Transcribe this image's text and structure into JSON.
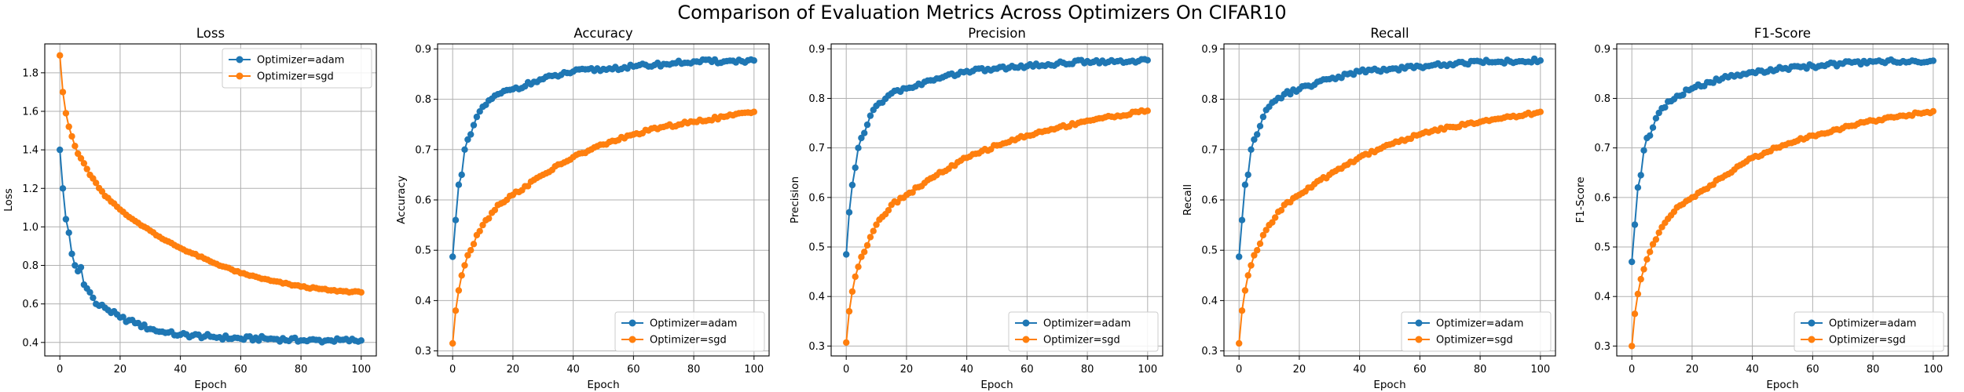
{
  "figure": {
    "suptitle": "Comparison of Evaluation Metrics Across Optimizers On CIFAR10"
  },
  "colors": {
    "adam": "#1f77b4",
    "sgd": "#ff7f0e",
    "grid": "#b0b0b0"
  },
  "chart_data": [
    {
      "type": "line",
      "title": "Loss",
      "xlabel": "Epoch",
      "ylabel": "Loss",
      "xlim": [
        -5,
        105
      ],
      "ylim": [
        0.33,
        1.95
      ],
      "xticks": [
        0,
        20,
        40,
        60,
        80,
        100
      ],
      "yticks": [
        0.4,
        0.6,
        0.8,
        1.0,
        1.2,
        1.4,
        1.6,
        1.8
      ],
      "ytick_labels": [
        "0.4",
        "0.6",
        "0.8",
        "1.0",
        "1.2",
        "1.4",
        "1.6",
        "1.8"
      ],
      "grid": true,
      "legend": "upper right",
      "series": [
        {
          "name": "Optimizer=adam",
          "key": "adam",
          "anchors": [
            [
              0,
              1.4
            ],
            [
              1,
              1.2
            ],
            [
              2,
              1.04
            ],
            [
              3,
              0.97
            ],
            [
              4,
              0.86
            ],
            [
              5,
              0.8
            ],
            [
              6,
              0.77
            ],
            [
              7,
              0.79
            ],
            [
              8,
              0.7
            ],
            [
              10,
              0.66
            ],
            [
              12,
              0.6
            ],
            [
              15,
              0.58
            ],
            [
              20,
              0.53
            ],
            [
              25,
              0.5
            ],
            [
              30,
              0.47
            ],
            [
              35,
              0.45
            ],
            [
              40,
              0.44
            ],
            [
              50,
              0.43
            ],
            [
              60,
              0.42
            ],
            [
              70,
              0.42
            ],
            [
              80,
              0.41
            ],
            [
              90,
              0.41
            ],
            [
              100,
              0.41
            ]
          ],
          "noise": 0.012
        },
        {
          "name": "Optimizer=sgd",
          "key": "sgd",
          "anchors": [
            [
              0,
              1.89
            ],
            [
              1,
              1.7
            ],
            [
              2,
              1.59
            ],
            [
              3,
              1.52
            ],
            [
              4,
              1.47
            ],
            [
              5,
              1.42
            ],
            [
              6,
              1.38
            ],
            [
              8,
              1.33
            ],
            [
              10,
              1.27
            ],
            [
              15,
              1.16
            ],
            [
              20,
              1.09
            ],
            [
              25,
              1.03
            ],
            [
              30,
              0.98
            ],
            [
              35,
              0.93
            ],
            [
              40,
              0.89
            ],
            [
              50,
              0.82
            ],
            [
              60,
              0.76
            ],
            [
              70,
              0.72
            ],
            [
              80,
              0.69
            ],
            [
              90,
              0.67
            ],
            [
              100,
              0.66
            ]
          ],
          "noise": 0.004
        }
      ]
    },
    {
      "type": "line",
      "title": "Accuracy",
      "xlabel": "Epoch",
      "ylabel": "Accuracy",
      "xlim": [
        -5,
        105
      ],
      "ylim": [
        0.29,
        0.91
      ],
      "xticks": [
        0,
        20,
        40,
        60,
        80,
        100
      ],
      "yticks": [
        0.3,
        0.4,
        0.5,
        0.6,
        0.7,
        0.8,
        0.9
      ],
      "ytick_labels": [
        "0.3",
        "0.4",
        "0.5",
        "0.6",
        "0.7",
        "0.8",
        "0.9"
      ],
      "grid": true,
      "legend": "lower right",
      "series": [
        {
          "name": "Optimizer=adam",
          "key": "adam",
          "anchors": [
            [
              0,
              0.487
            ],
            [
              1,
              0.56
            ],
            [
              2,
              0.63
            ],
            [
              3,
              0.65
            ],
            [
              4,
              0.7
            ],
            [
              5,
              0.72
            ],
            [
              6,
              0.73
            ],
            [
              8,
              0.765
            ],
            [
              10,
              0.785
            ],
            [
              15,
              0.81
            ],
            [
              20,
              0.82
            ],
            [
              30,
              0.84
            ],
            [
              40,
              0.855
            ],
            [
              50,
              0.86
            ],
            [
              60,
              0.865
            ],
            [
              70,
              0.87
            ],
            [
              80,
              0.875
            ],
            [
              90,
              0.875
            ],
            [
              100,
              0.877
            ]
          ],
          "noise": 0.004
        },
        {
          "name": "Optimizer=sgd",
          "key": "sgd",
          "anchors": [
            [
              0,
              0.315
            ],
            [
              1,
              0.38
            ],
            [
              2,
              0.42
            ],
            [
              3,
              0.45
            ],
            [
              4,
              0.47
            ],
            [
              5,
              0.49
            ],
            [
              6,
              0.5
            ],
            [
              8,
              0.53
            ],
            [
              10,
              0.55
            ],
            [
              15,
              0.59
            ],
            [
              20,
              0.61
            ],
            [
              30,
              0.65
            ],
            [
              40,
              0.685
            ],
            [
              50,
              0.71
            ],
            [
              60,
              0.73
            ],
            [
              70,
              0.745
            ],
            [
              80,
              0.755
            ],
            [
              90,
              0.765
            ],
            [
              100,
              0.775
            ]
          ],
          "noise": 0.003
        }
      ]
    },
    {
      "type": "line",
      "title": "Precision",
      "xlabel": "Epoch",
      "ylabel": "Precision",
      "xlim": [
        -5,
        105
      ],
      "ylim": [
        0.28,
        0.91
      ],
      "xticks": [
        0,
        20,
        40,
        60,
        80,
        100
      ],
      "yticks": [
        0.3,
        0.4,
        0.5,
        0.6,
        0.7,
        0.8,
        0.9
      ],
      "ytick_labels": [
        "0.3",
        "0.4",
        "0.5",
        "0.6",
        "0.7",
        "0.8",
        "0.9"
      ],
      "grid": true,
      "legend": "lower right",
      "series": [
        {
          "name": "Optimizer=adam",
          "key": "adam",
          "anchors": [
            [
              0,
              0.485
            ],
            [
              1,
              0.57
            ],
            [
              2,
              0.625
            ],
            [
              3,
              0.66
            ],
            [
              4,
              0.7
            ],
            [
              5,
              0.72
            ],
            [
              6,
              0.73
            ],
            [
              8,
              0.765
            ],
            [
              10,
              0.785
            ],
            [
              15,
              0.81
            ],
            [
              20,
              0.82
            ],
            [
              30,
              0.84
            ],
            [
              40,
              0.855
            ],
            [
              50,
              0.86
            ],
            [
              60,
              0.865
            ],
            [
              70,
              0.87
            ],
            [
              80,
              0.875
            ],
            [
              90,
              0.875
            ],
            [
              100,
              0.877
            ]
          ],
          "noise": 0.004
        },
        {
          "name": "Optimizer=sgd",
          "key": "sgd",
          "anchors": [
            [
              0,
              0.307
            ],
            [
              1,
              0.37
            ],
            [
              2,
              0.41
            ],
            [
              3,
              0.44
            ],
            [
              4,
              0.46
            ],
            [
              5,
              0.48
            ],
            [
              6,
              0.49
            ],
            [
              8,
              0.52
            ],
            [
              10,
              0.545
            ],
            [
              15,
              0.585
            ],
            [
              20,
              0.605
            ],
            [
              30,
              0.645
            ],
            [
              40,
              0.68
            ],
            [
              50,
              0.705
            ],
            [
              60,
              0.725
            ],
            [
              70,
              0.74
            ],
            [
              80,
              0.755
            ],
            [
              90,
              0.765
            ],
            [
              100,
              0.775
            ]
          ],
          "noise": 0.003
        }
      ]
    },
    {
      "type": "line",
      "title": "Recall",
      "xlabel": "Epoch",
      "ylabel": "Recall",
      "xlim": [
        -5,
        105
      ],
      "ylim": [
        0.29,
        0.91
      ],
      "xticks": [
        0,
        20,
        40,
        60,
        80,
        100
      ],
      "yticks": [
        0.3,
        0.4,
        0.5,
        0.6,
        0.7,
        0.8,
        0.9
      ],
      "ytick_labels": [
        "0.3",
        "0.4",
        "0.5",
        "0.6",
        "0.7",
        "0.8",
        "0.9"
      ],
      "grid": true,
      "legend": "lower right",
      "series": [
        {
          "name": "Optimizer=adam",
          "key": "adam",
          "anchors": [
            [
              0,
              0.487
            ],
            [
              1,
              0.56
            ],
            [
              2,
              0.63
            ],
            [
              3,
              0.65
            ],
            [
              4,
              0.7
            ],
            [
              5,
              0.72
            ],
            [
              6,
              0.73
            ],
            [
              8,
              0.765
            ],
            [
              10,
              0.785
            ],
            [
              15,
              0.81
            ],
            [
              20,
              0.82
            ],
            [
              30,
              0.84
            ],
            [
              40,
              0.855
            ],
            [
              50,
              0.86
            ],
            [
              60,
              0.865
            ],
            [
              70,
              0.87
            ],
            [
              80,
              0.875
            ],
            [
              90,
              0.875
            ],
            [
              100,
              0.877
            ]
          ],
          "noise": 0.004
        },
        {
          "name": "Optimizer=sgd",
          "key": "sgd",
          "anchors": [
            [
              0,
              0.315
            ],
            [
              1,
              0.38
            ],
            [
              2,
              0.42
            ],
            [
              3,
              0.45
            ],
            [
              4,
              0.47
            ],
            [
              5,
              0.49
            ],
            [
              6,
              0.5
            ],
            [
              8,
              0.53
            ],
            [
              10,
              0.55
            ],
            [
              15,
              0.59
            ],
            [
              20,
              0.61
            ],
            [
              30,
              0.65
            ],
            [
              40,
              0.685
            ],
            [
              50,
              0.71
            ],
            [
              60,
              0.73
            ],
            [
              70,
              0.745
            ],
            [
              80,
              0.755
            ],
            [
              90,
              0.765
            ],
            [
              100,
              0.775
            ]
          ],
          "noise": 0.003
        }
      ]
    },
    {
      "type": "line",
      "title": "F1-Score",
      "xlabel": "Epoch",
      "ylabel": "F1-Score",
      "xlim": [
        -5,
        105
      ],
      "ylim": [
        0.28,
        0.91
      ],
      "xticks": [
        0,
        20,
        40,
        60,
        80,
        100
      ],
      "yticks": [
        0.3,
        0.4,
        0.5,
        0.6,
        0.7,
        0.8,
        0.9
      ],
      "ytick_labels": [
        "0.3",
        "0.4",
        "0.5",
        "0.6",
        "0.7",
        "0.8",
        "0.9"
      ],
      "grid": true,
      "legend": "lower right",
      "series": [
        {
          "name": "Optimizer=adam",
          "key": "adam",
          "anchors": [
            [
              0,
              0.47
            ],
            [
              1,
              0.545
            ],
            [
              2,
              0.62
            ],
            [
              3,
              0.645
            ],
            [
              4,
              0.695
            ],
            [
              5,
              0.72
            ],
            [
              6,
              0.725
            ],
            [
              8,
              0.76
            ],
            [
              10,
              0.78
            ],
            [
              15,
              0.805
            ],
            [
              20,
              0.82
            ],
            [
              30,
              0.84
            ],
            [
              40,
              0.853
            ],
            [
              50,
              0.86
            ],
            [
              60,
              0.865
            ],
            [
              70,
              0.87
            ],
            [
              80,
              0.874
            ],
            [
              90,
              0.875
            ],
            [
              100,
              0.876
            ]
          ],
          "noise": 0.004
        },
        {
          "name": "Optimizer=sgd",
          "key": "sgd",
          "anchors": [
            [
              0,
              0.3
            ],
            [
              1,
              0.365
            ],
            [
              2,
              0.405
            ],
            [
              3,
              0.435
            ],
            [
              4,
              0.455
            ],
            [
              5,
              0.475
            ],
            [
              6,
              0.49
            ],
            [
              8,
              0.515
            ],
            [
              10,
              0.54
            ],
            [
              15,
              0.58
            ],
            [
              20,
              0.6
            ],
            [
              30,
              0.64
            ],
            [
              40,
              0.68
            ],
            [
              50,
              0.705
            ],
            [
              60,
              0.725
            ],
            [
              70,
              0.74
            ],
            [
              80,
              0.755
            ],
            [
              90,
              0.765
            ],
            [
              100,
              0.774
            ]
          ],
          "noise": 0.003
        }
      ]
    }
  ]
}
